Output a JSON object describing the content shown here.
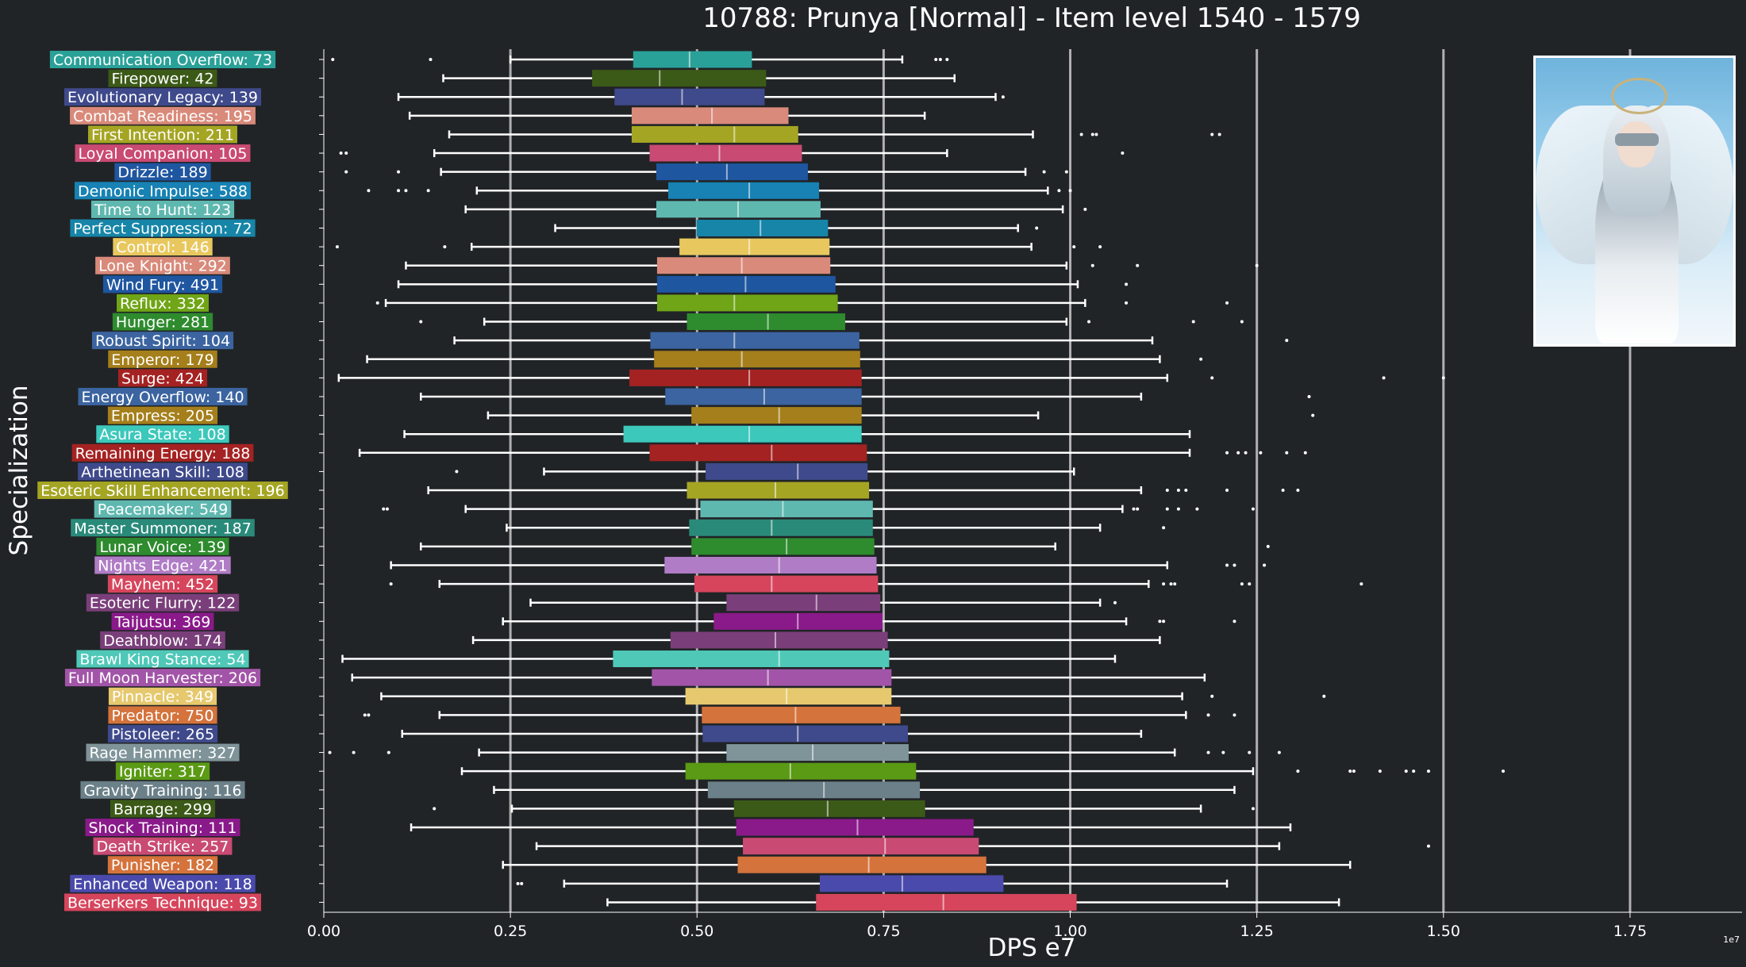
{
  "chart_data": {
    "type": "boxplot",
    "title": "10788: Prunya [Normal] - Item level 1540 - 1579",
    "xlabel": "DPS e7",
    "ylabel": "Specialization",
    "offset_label": "1e7",
    "xlim": [
      0,
      1.9
    ],
    "xticks": [
      "0.00",
      "0.25",
      "0.50",
      "0.75",
      "1.00",
      "1.25",
      "1.50",
      "1.75"
    ],
    "xtick_values": [
      0,
      0.25,
      0.5,
      0.75,
      1.0,
      1.25,
      1.5,
      1.75
    ],
    "grid": "vertical",
    "series": [
      {
        "label": "Communication Overflow: 73",
        "color": "#2aa198",
        "min": 0.25,
        "q1": 0.415,
        "median": 0.49,
        "q3": 0.573,
        "max": 0.775,
        "outliers": [
          0.012,
          0.143,
          0.82,
          0.826,
          0.835
        ]
      },
      {
        "label": "Firepower: 42",
        "color": "#3c5a17",
        "min": 0.16,
        "q1": 0.36,
        "median": 0.45,
        "q3": 0.592,
        "max": 0.845,
        "outliers": []
      },
      {
        "label": "Evolutionary Legacy: 139",
        "color": "#3f4a8c",
        "min": 0.1,
        "q1": 0.39,
        "median": 0.48,
        "q3": 0.59,
        "max": 0.9,
        "outliers": [
          0.91
        ]
      },
      {
        "label": "Combat Readiness: 195",
        "color": "#d98a7a",
        "min": 0.115,
        "q1": 0.413,
        "median": 0.52,
        "q3": 0.622,
        "max": 0.805,
        "outliers": []
      },
      {
        "label": "First Intention: 211",
        "color": "#a5a524",
        "min": 0.168,
        "q1": 0.413,
        "median": 0.55,
        "q3": 0.635,
        "max": 0.95,
        "outliers": [
          1.015,
          1.03,
          1.035,
          1.19,
          1.2
        ]
      },
      {
        "label": "Loyal Companion: 105",
        "color": "#c94a73",
        "min": 0.148,
        "q1": 0.437,
        "median": 0.53,
        "q3": 0.64,
        "max": 0.835,
        "outliers": [
          0.023,
          0.03,
          1.07
        ]
      },
      {
        "label": "Drizzle: 189",
        "color": "#1f56a0",
        "min": 0.157,
        "q1": 0.446,
        "median": 0.54,
        "q3": 0.648,
        "max": 0.94,
        "outliers": [
          0.03,
          0.1,
          0.965,
          0.995
        ]
      },
      {
        "label": "Demonic Impulse: 588",
        "color": "#1782b3",
        "min": 0.205,
        "q1": 0.462,
        "median": 0.57,
        "q3": 0.663,
        "max": 0.97,
        "outliers": [
          0.06,
          0.1,
          0.11,
          0.14,
          0.985,
          1.0
        ]
      },
      {
        "label": "Time to Hunt: 123",
        "color": "#5fb8b0",
        "min": 0.19,
        "q1": 0.446,
        "median": 0.555,
        "q3": 0.665,
        "max": 0.99,
        "outliers": [
          1.02
        ]
      },
      {
        "label": "Perfect Suppression: 72",
        "color": "#1685a8",
        "min": 0.31,
        "q1": 0.5,
        "median": 0.585,
        "q3": 0.675,
        "max": 0.93,
        "outliers": [
          0.955
        ]
      },
      {
        "label": "Control: 146",
        "color": "#e8c85e",
        "min": 0.198,
        "q1": 0.477,
        "median": 0.57,
        "q3": 0.677,
        "max": 0.948,
        "outliers": [
          0.018,
          0.162,
          1.005,
          1.04
        ]
      },
      {
        "label": "Lone Knight: 292",
        "color": "#d98a7a",
        "min": 0.11,
        "q1": 0.447,
        "median": 0.56,
        "q3": 0.678,
        "max": 0.995,
        "outliers": [
          1.03,
          1.09,
          1.25
        ]
      },
      {
        "label": "Wind Fury: 491",
        "color": "#1f56a0",
        "min": 0.1,
        "q1": 0.447,
        "median": 0.565,
        "q3": 0.685,
        "max": 1.01,
        "outliers": [
          1.075
        ]
      },
      {
        "label": "Reflux: 332",
        "color": "#6fa516",
        "min": 0.083,
        "q1": 0.447,
        "median": 0.55,
        "q3": 0.688,
        "max": 1.02,
        "outliers": [
          0.072,
          1.075,
          1.21
        ]
      },
      {
        "label": "Hunger: 281",
        "color": "#2e8b2e",
        "min": 0.215,
        "q1": 0.487,
        "median": 0.595,
        "q3": 0.698,
        "max": 0.995,
        "outliers": [
          0.13,
          1.025,
          1.165,
          1.23
        ]
      },
      {
        "label": "Robust Spirit: 104",
        "color": "#3b64a0",
        "min": 0.175,
        "q1": 0.438,
        "median": 0.55,
        "q3": 0.717,
        "max": 1.11,
        "outliers": [
          1.29
        ]
      },
      {
        "label": "Emperor: 179",
        "color": "#a57f1b",
        "min": 0.058,
        "q1": 0.443,
        "median": 0.56,
        "q3": 0.718,
        "max": 1.12,
        "outliers": [
          1.175
        ]
      },
      {
        "label": "Surge: 424",
        "color": "#a52222",
        "min": 0.02,
        "q1": 0.41,
        "median": 0.57,
        "q3": 0.72,
        "max": 1.13,
        "outliers": [
          1.19,
          1.42,
          1.5
        ]
      },
      {
        "label": "Energy Overflow: 140",
        "color": "#3b64a0",
        "min": 0.13,
        "q1": 0.458,
        "median": 0.59,
        "q3": 0.72,
        "max": 1.095,
        "outliers": [
          1.32
        ]
      },
      {
        "label": "Empress: 205",
        "color": "#a57f1b",
        "min": 0.22,
        "q1": 0.493,
        "median": 0.61,
        "q3": 0.72,
        "max": 0.957,
        "outliers": [
          1.325
        ]
      },
      {
        "label": "Asura State: 108",
        "color": "#3cc8bb",
        "min": 0.108,
        "q1": 0.402,
        "median": 0.57,
        "q3": 0.72,
        "max": 1.16,
        "outliers": []
      },
      {
        "label": "Remaining Energy: 188",
        "color": "#a52222",
        "min": 0.048,
        "q1": 0.437,
        "median": 0.6,
        "q3": 0.727,
        "max": 1.16,
        "outliers": [
          1.21,
          1.225,
          1.235,
          1.255,
          1.29,
          1.315
        ]
      },
      {
        "label": "Arthetinean Skill: 108",
        "color": "#3f4a8c",
        "min": 0.295,
        "q1": 0.512,
        "median": 0.635,
        "q3": 0.728,
        "max": 1.005,
        "outliers": [
          0.178
        ]
      },
      {
        "label": "Esoteric Skill Enhancement: 196",
        "color": "#a5a524",
        "min": 0.14,
        "q1": 0.487,
        "median": 0.605,
        "q3": 0.73,
        "max": 1.095,
        "outliers": [
          1.13,
          1.145,
          1.155,
          1.21,
          1.285,
          1.305
        ]
      },
      {
        "label": "Peacemaker: 549",
        "color": "#5fb8b0",
        "min": 0.19,
        "q1": 0.505,
        "median": 0.615,
        "q3": 0.735,
        "max": 1.07,
        "outliers": [
          0.08,
          0.085,
          1.085,
          1.09,
          1.13,
          1.145,
          1.17,
          1.245
        ]
      },
      {
        "label": "Master Summoner: 187",
        "color": "#2a8a7a",
        "min": 0.245,
        "q1": 0.49,
        "median": 0.6,
        "q3": 0.735,
        "max": 1.04,
        "outliers": [
          1.125
        ]
      },
      {
        "label": "Lunar Voice: 139",
        "color": "#2e8b2e",
        "min": 0.13,
        "q1": 0.493,
        "median": 0.62,
        "q3": 0.737,
        "max": 0.98,
        "outliers": [
          1.265
        ]
      },
      {
        "label": "Nights Edge: 421",
        "color": "#b07cc6",
        "min": 0.09,
        "q1": 0.457,
        "median": 0.61,
        "q3": 0.74,
        "max": 1.13,
        "outliers": [
          1.21,
          1.22,
          1.26
        ]
      },
      {
        "label": "Mayhem: 452",
        "color": "#d6455c",
        "min": 0.155,
        "q1": 0.497,
        "median": 0.6,
        "q3": 0.742,
        "max": 1.105,
        "outliers": [
          0.09,
          1.125,
          1.135,
          1.14,
          1.23,
          1.24,
          1.39
        ]
      },
      {
        "label": "Esoteric Flurry: 122",
        "color": "#7a3f7a",
        "min": 0.277,
        "q1": 0.54,
        "median": 0.66,
        "q3": 0.745,
        "max": 1.04,
        "outliers": [
          1.06
        ]
      },
      {
        "label": "Taijutsu: 369",
        "color": "#8a1a8a",
        "min": 0.24,
        "q1": 0.523,
        "median": 0.635,
        "q3": 0.748,
        "max": 1.075,
        "outliers": [
          1.12,
          1.125,
          1.22
        ]
      },
      {
        "label": "Deathblow: 174",
        "color": "#7a3f7a",
        "min": 0.2,
        "q1": 0.465,
        "median": 0.605,
        "q3": 0.755,
        "max": 1.12,
        "outliers": []
      },
      {
        "label": "Brawl King Stance: 54",
        "color": "#4fc8b8",
        "min": 0.025,
        "q1": 0.388,
        "median": 0.61,
        "q3": 0.757,
        "max": 1.06,
        "outliers": []
      },
      {
        "label": "Full Moon Harvester: 206",
        "color": "#a255a8",
        "min": 0.038,
        "q1": 0.44,
        "median": 0.595,
        "q3": 0.76,
        "max": 1.18,
        "outliers": []
      },
      {
        "label": "Pinnacle: 349",
        "color": "#e6c96e",
        "min": 0.077,
        "q1": 0.485,
        "median": 0.62,
        "q3": 0.76,
        "max": 1.15,
        "outliers": [
          1.19,
          1.34
        ]
      },
      {
        "label": "Predator: 750",
        "color": "#d4733c",
        "min": 0.155,
        "q1": 0.507,
        "median": 0.632,
        "q3": 0.772,
        "max": 1.155,
        "outliers": [
          0.055,
          0.06,
          1.185,
          1.22
        ]
      },
      {
        "label": "Pistoleer: 265",
        "color": "#3f4a8c",
        "min": 0.105,
        "q1": 0.508,
        "median": 0.635,
        "q3": 0.782,
        "max": 1.095,
        "outliers": []
      },
      {
        "label": "Rage Hammer: 327",
        "color": "#7f9499",
        "min": 0.208,
        "q1": 0.54,
        "median": 0.655,
        "q3": 0.783,
        "max": 1.14,
        "outliers": [
          0.008,
          0.04,
          0.087,
          1.185,
          1.205,
          1.24,
          1.28
        ]
      },
      {
        "label": "Igniter: 317",
        "color": "#5a9a14",
        "min": 0.185,
        "q1": 0.485,
        "median": 0.625,
        "q3": 0.793,
        "max": 1.245,
        "outliers": [
          1.305,
          1.375,
          1.38,
          1.415,
          1.45,
          1.46,
          1.48,
          1.58
        ]
      },
      {
        "label": "Gravity Training: 116",
        "color": "#6b8088",
        "min": 0.228,
        "q1": 0.515,
        "median": 0.67,
        "q3": 0.798,
        "max": 1.22,
        "outliers": []
      },
      {
        "label": "Barrage: 299",
        "color": "#3c5a17",
        "min": 0.252,
        "q1": 0.55,
        "median": 0.675,
        "q3": 0.805,
        "max": 1.175,
        "outliers": [
          0.148,
          1.245
        ]
      },
      {
        "label": "Shock Training: 111",
        "color": "#8a1a8a",
        "min": 0.117,
        "q1": 0.553,
        "median": 0.715,
        "q3": 0.87,
        "max": 1.295,
        "outliers": []
      },
      {
        "label": "Death Strike: 257",
        "color": "#c94a73",
        "min": 0.285,
        "q1": 0.562,
        "median": 0.752,
        "q3": 0.877,
        "max": 1.28,
        "outliers": [
          1.48
        ]
      },
      {
        "label": "Punisher: 182",
        "color": "#d4733c",
        "min": 0.24,
        "q1": 0.555,
        "median": 0.73,
        "q3": 0.887,
        "max": 1.375,
        "outliers": []
      },
      {
        "label": "Enhanced Weapon: 118",
        "color": "#4a4aac",
        "min": 0.322,
        "q1": 0.665,
        "median": 0.775,
        "q3": 0.91,
        "max": 1.21,
        "outliers": [
          0.26,
          0.265
        ]
      },
      {
        "label": "Berserkers Technique: 93",
        "color": "#d6455c",
        "min": 0.38,
        "q1": 0.66,
        "median": 0.83,
        "q3": 1.008,
        "max": 1.36,
        "outliers": []
      }
    ]
  }
}
